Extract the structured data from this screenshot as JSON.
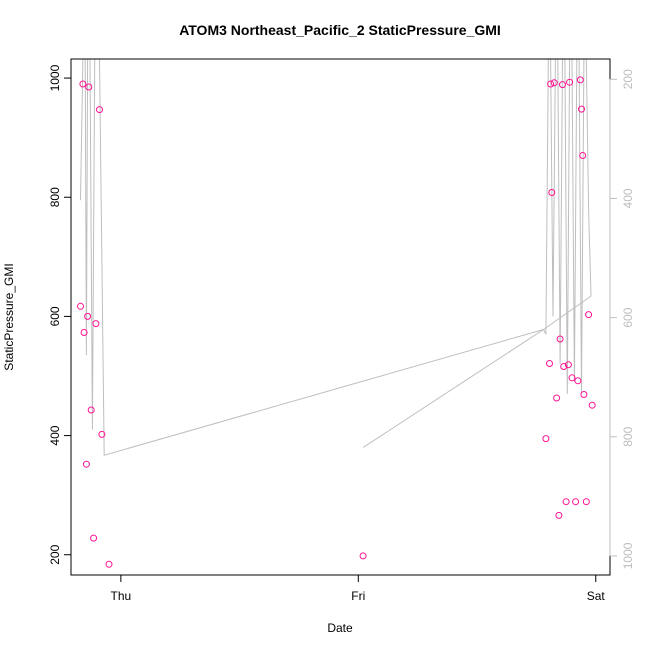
{
  "chart_data": {
    "type": "scatter",
    "title": "ATOM3 Northeast_Pacific_2 StaticPressure_GMI",
    "xlabel": "Date",
    "ylabel": "StaticPressure_GMI",
    "x_unit": "day",
    "x_ticks": [
      {
        "value": 0,
        "label": "Thu"
      },
      {
        "value": 1,
        "label": "Fri"
      },
      {
        "value": 2,
        "label": "Sat"
      }
    ],
    "xlim": [
      -0.21,
      2.06
    ],
    "ylim": [
      166,
      1032
    ],
    "y_ticks": [
      200,
      400,
      600,
      800,
      1000
    ],
    "y2_ticks": [
      200,
      400,
      600,
      800,
      1000
    ],
    "y2lim": [
      1032,
      166
    ],
    "marker_color": "#ff1493",
    "line_color": "#bebebe",
    "axis_color": "#bebebe",
    "series": [
      {
        "marker": "circle",
        "points": [
          [
            -0.17,
            617
          ],
          [
            -0.16,
            990
          ],
          [
            -0.155,
            573
          ],
          [
            -0.145,
            352
          ],
          [
            -0.14,
            600
          ],
          [
            -0.135,
            985
          ],
          [
            -0.125,
            443
          ],
          [
            -0.115,
            228
          ],
          [
            -0.105,
            588
          ],
          [
            -0.09,
            947
          ],
          [
            -0.08,
            402
          ],
          [
            -0.05,
            184
          ],
          [
            1.02,
            198
          ],
          [
            1.79,
            395
          ],
          [
            1.805,
            521
          ],
          [
            1.81,
            990
          ],
          [
            1.815,
            808
          ],
          [
            1.825,
            992
          ],
          [
            1.835,
            463
          ],
          [
            1.845,
            266
          ],
          [
            1.85,
            562
          ],
          [
            1.86,
            989
          ],
          [
            1.865,
            516
          ],
          [
            1.875,
            289
          ],
          [
            1.885,
            519
          ],
          [
            1.89,
            993
          ],
          [
            1.9,
            497
          ],
          [
            1.915,
            289
          ],
          [
            1.925,
            492
          ],
          [
            1.935,
            997
          ],
          [
            1.94,
            948
          ],
          [
            1.945,
            870
          ],
          [
            1.95,
            469
          ],
          [
            1.96,
            289
          ],
          [
            1.97,
            603
          ],
          [
            1.985,
            451
          ]
        ]
      }
    ],
    "line_series": [
      {
        "points": [
          [
            -0.17,
            795
          ],
          [
            -0.16,
            1032
          ],
          [
            -0.15,
            1032
          ],
          [
            -0.145,
            535
          ],
          [
            -0.14,
            1032
          ],
          [
            -0.13,
            1032
          ],
          [
            -0.12,
            410
          ],
          [
            -0.11,
            1032
          ],
          [
            -0.1,
            1032
          ],
          [
            -0.09,
            1032
          ],
          [
            -0.07,
            367
          ],
          [
            1.78,
            578
          ],
          [
            1.79,
            570
          ],
          [
            1.8,
            1032
          ],
          [
            1.81,
            1032
          ],
          [
            1.82,
            600
          ],
          [
            1.83,
            1032
          ],
          [
            1.84,
            1032
          ],
          [
            1.85,
            520
          ],
          [
            1.86,
            1032
          ],
          [
            1.87,
            1032
          ],
          [
            1.88,
            470
          ],
          [
            1.89,
            1032
          ],
          [
            1.9,
            1032
          ],
          [
            1.91,
            490
          ],
          [
            1.92,
            1032
          ],
          [
            1.93,
            1032
          ],
          [
            1.94,
            470
          ],
          [
            1.95,
            1032
          ],
          [
            1.96,
            1032
          ],
          [
            1.97,
            780
          ],
          [
            1.98,
            634
          ]
        ]
      },
      {
        "points": [
          [
            1.02,
            380
          ],
          [
            1.78,
            578
          ],
          [
            1.98,
            634
          ]
        ]
      }
    ]
  }
}
